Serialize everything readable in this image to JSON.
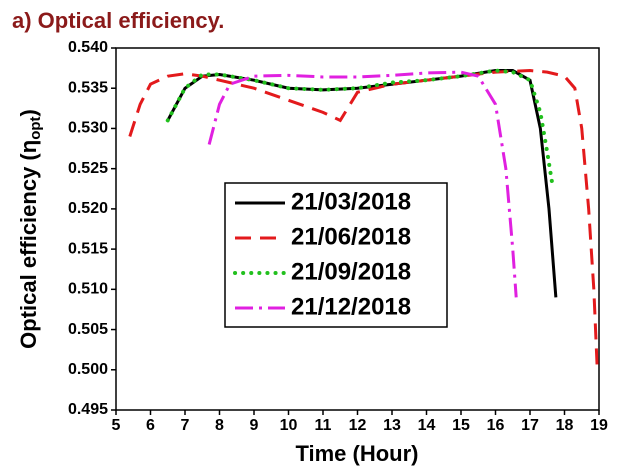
{
  "chart_data": {
    "type": "line",
    "title": "a) Optical efficiency.",
    "title_color": "#8b1a1a",
    "xlabel": "Time (Hour)",
    "ylabel": [
      "Optical efficiency (η",
      "opt",
      ")"
    ],
    "xlim": [
      5,
      19
    ],
    "xticks": [
      5,
      6,
      7,
      8,
      9,
      10,
      11,
      12,
      13,
      14,
      15,
      16,
      17,
      18,
      19
    ],
    "ylim": [
      0.495,
      0.54
    ],
    "yticks": [
      {
        "value": 0.495,
        "label": "0.495"
      },
      {
        "value": 0.5,
        "label": "0.500"
      },
      {
        "value": 0.505,
        "label": "0.505"
      },
      {
        "value": 0.51,
        "label": "0.510"
      },
      {
        "value": 0.515,
        "label": "0.515"
      },
      {
        "value": 0.52,
        "label": "0.520"
      },
      {
        "value": 0.525,
        "label": "0.525"
      },
      {
        "value": 0.53,
        "label": "0.530"
      },
      {
        "value": 0.535,
        "label": "0.535"
      },
      {
        "value": 0.54,
        "label": "0.540"
      }
    ],
    "grid": false,
    "legend": "center",
    "series": [
      {
        "name": "21/03/2018",
        "color": "#000000",
        "dash": "solid",
        "x": [
          6.5,
          7,
          7.5,
          8,
          9,
          10,
          11,
          12,
          13,
          14,
          15,
          16,
          16.5,
          17,
          17.3,
          17.55,
          17.75
        ],
        "values": [
          0.531,
          0.535,
          0.5365,
          0.5367,
          0.536,
          0.535,
          0.5348,
          0.535,
          0.5355,
          0.536,
          0.5365,
          0.5372,
          0.5372,
          0.536,
          0.53,
          0.52,
          0.509
        ]
      },
      {
        "name": "21/06/2018",
        "color": "#e31a1c",
        "dash": "dashed",
        "x": [
          5.4,
          5.7,
          6,
          6.5,
          7,
          7.5,
          8,
          9,
          10,
          11,
          11.5,
          12,
          13,
          14,
          15,
          16,
          17,
          17.5,
          18,
          18.3,
          18.5,
          18.7,
          18.85,
          18.95
        ],
        "values": [
          0.529,
          0.533,
          0.5355,
          0.5365,
          0.5368,
          0.5365,
          0.536,
          0.535,
          0.5335,
          0.532,
          0.531,
          0.5345,
          0.5355,
          0.536,
          0.5365,
          0.537,
          0.5372,
          0.537,
          0.5365,
          0.535,
          0.53,
          0.52,
          0.51,
          0.5
        ]
      },
      {
        "name": "21/09/2018",
        "color": "#22c01e",
        "dash": "dotted",
        "x": [
          6.5,
          7,
          7.5,
          8,
          9,
          10,
          11,
          12,
          13,
          14,
          15,
          16,
          16.5,
          17,
          17.3,
          17.5,
          17.65
        ],
        "values": [
          0.531,
          0.535,
          0.5367,
          0.5367,
          0.536,
          0.535,
          0.5348,
          0.535,
          0.5357,
          0.536,
          0.5365,
          0.5372,
          0.537,
          0.536,
          0.532,
          0.527,
          0.523
        ]
      },
      {
        "name": "21/12/2018",
        "color": "#e020e0",
        "dash": "dashdot",
        "x": [
          7.7,
          8,
          8.3,
          9,
          10,
          11,
          12,
          13,
          14,
          15,
          15.5,
          16,
          16.3,
          16.5,
          16.6
        ],
        "values": [
          0.528,
          0.533,
          0.5355,
          0.5365,
          0.5366,
          0.5364,
          0.5364,
          0.5366,
          0.5369,
          0.537,
          0.5365,
          0.533,
          0.525,
          0.515,
          0.509
        ]
      }
    ]
  }
}
